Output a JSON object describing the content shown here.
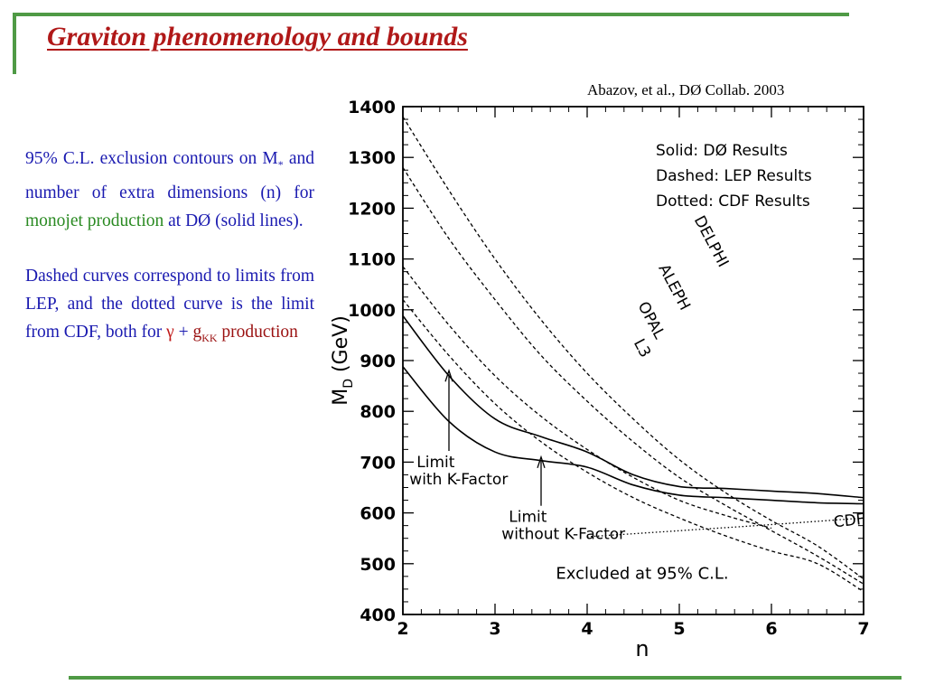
{
  "slide": {
    "title": "Graviton phenomenology and bounds",
    "citation": "Abazov, et al., DØ Collab. 2003",
    "paragraph1": {
      "part1": "95% C.L. exclusion contours on M",
      "subscript": "*",
      "part2": " and number of extra dimensions (n) for ",
      "highlight": "monojet production",
      "part3": " at DØ (solid lines)."
    },
    "paragraph2": {
      "part1": "Dashed curves correspond to limits from LEP, and the dotted curve is the limit from CDF, both for ",
      "gamma": "γ",
      "plus": " + ",
      "g": "g",
      "g_sub": "KK",
      "part2": " production"
    },
    "colors": {
      "frame": "#4f9a45",
      "title": "#b01818",
      "body": "#1a1ab0",
      "highlight": "#2a8a22",
      "accent": "#9a1010"
    }
  },
  "chart_data": {
    "type": "line",
    "xlabel": "n",
    "ylabel": "M",
    "ylabel_sub": "D",
    "ylabel_unit": " (GeV)",
    "xlim": [
      2,
      7
    ],
    "ylim": [
      400,
      1400
    ],
    "xticks": [
      2,
      3,
      4,
      5,
      6,
      7
    ],
    "yticks": [
      400,
      500,
      600,
      700,
      800,
      900,
      1000,
      1100,
      1200,
      1300,
      1400
    ],
    "legend": [
      "Solid: DØ Results",
      "Dashed: LEP Results",
      "Dotted: CDF Results"
    ],
    "legend_position": "top-right",
    "series": [
      {
        "name": "DELPHI",
        "style": "dashed",
        "x": [
          2,
          2.5,
          3,
          3.5,
          4,
          4.5,
          5,
          5.5,
          6,
          6.5,
          7
        ],
        "y": [
          1380,
          1235,
          1100,
          980,
          875,
          785,
          705,
          640,
          585,
          535,
          470
        ]
      },
      {
        "name": "ALEPH",
        "style": "dashed",
        "x": [
          2,
          2.5,
          3,
          3.5,
          4,
          4.5,
          5,
          5.5,
          6,
          6.5,
          7
        ],
        "y": [
          1280,
          1140,
          1020,
          910,
          820,
          740,
          670,
          615,
          565,
          515,
          460
        ]
      },
      {
        "name": "OPAL",
        "style": "dashed",
        "x": [
          2,
          2.5,
          3,
          3.5,
          4,
          4.5,
          5,
          5.5,
          6
        ],
        "y": [
          1085,
          970,
          870,
          790,
          725,
          670,
          625,
          595,
          570
        ]
      },
      {
        "name": "L3",
        "style": "dashed",
        "x": [
          2,
          2.5,
          3,
          3.5,
          4,
          4.5,
          5,
          5.5,
          6,
          6.5,
          7
        ],
        "y": [
          1020,
          910,
          815,
          740,
          680,
          630,
          590,
          555,
          525,
          500,
          445
        ]
      },
      {
        "name": "CDF",
        "style": "dotted",
        "x": [
          4,
          5,
          6,
          7
        ],
        "y": [
          553,
          565,
          577,
          590
        ]
      },
      {
        "name": "Limit with K-Factor",
        "style": "solid",
        "x": [
          2,
          2.5,
          3,
          3.5,
          4,
          4.5,
          5,
          5.5,
          6,
          6.5,
          7
        ],
        "y": [
          988,
          870,
          785,
          750,
          720,
          675,
          652,
          648,
          643,
          638,
          630
        ]
      },
      {
        "name": "Limit without K-Factor",
        "style": "solid",
        "x": [
          2,
          2.5,
          3,
          3.5,
          4,
          4.5,
          5,
          5.5,
          6,
          6.5,
          7
        ],
        "y": [
          888,
          780,
          720,
          703,
          690,
          655,
          635,
          630,
          625,
          620,
          618
        ]
      }
    ],
    "curve_labels": [
      {
        "text": "DELPHI",
        "x": 5.3,
        "y": 1130
      },
      {
        "text": "ALEPH",
        "x": 4.9,
        "y": 1040
      },
      {
        "text": "OPAL",
        "x": 4.65,
        "y": 975
      },
      {
        "text": "L3",
        "x": 4.55,
        "y": 920
      },
      {
        "text": "CDF",
        "x": 6.85,
        "y": 575
      }
    ],
    "annotations": [
      {
        "text": "Limit",
        "text2": "with K-Factor",
        "x": 2.15,
        "y": 690,
        "arrow_to": [
          2.5,
          880
        ]
      },
      {
        "text": "Limit",
        "text2": "without K-Factor",
        "x": 3.15,
        "y": 582,
        "arrow_to": [
          3.5,
          710
        ]
      }
    ],
    "excluded_label": "Excluded at 95% C.L."
  }
}
